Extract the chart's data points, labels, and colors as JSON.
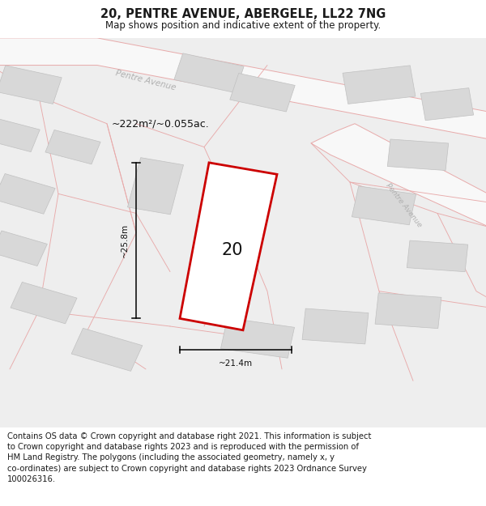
{
  "title": "20, PENTRE AVENUE, ABERGELE, LL22 7NG",
  "subtitle": "Map shows position and indicative extent of the property.",
  "footer": "Contains OS data © Crown copyright and database right 2021. This information is subject\nto Crown copyright and database rights 2023 and is reproduced with the permission of\nHM Land Registry. The polygons (including the associated geometry, namely x, y\nco-ordinates) are subject to Crown copyright and database rights 2023 Ordnance Survey\n100026316.",
  "area_label": "~222m²/~0.055ac.",
  "width_label": "~21.4m",
  "height_label": "~25.8m",
  "number_label": "20",
  "map_bg": "#eeeeee",
  "plot_outline_color": "#cc0000",
  "building_fill": "#d8d8d8",
  "building_edge": "#c0c0c0",
  "road_fill": "#f8f8f8",
  "parcel_color": "#e8aaaa",
  "street_label_color": "#b0b0b0",
  "title_fontsize": 10.5,
  "subtitle_fontsize": 8.5,
  "footer_fontsize": 7.2
}
